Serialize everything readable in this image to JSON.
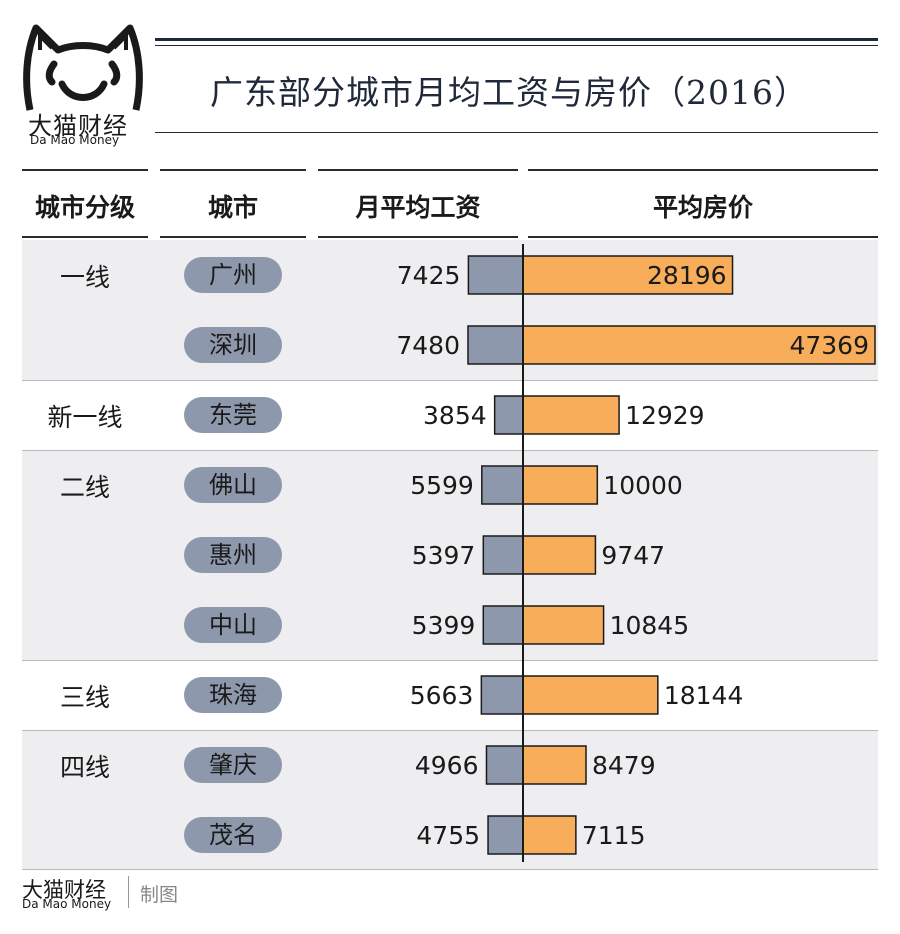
{
  "brand": {
    "name_cn": "大猫财经",
    "name_en": "Da Mao Money",
    "made_by": "制图"
  },
  "title": "广东部分城市月均工资与房价（2016）",
  "headers": {
    "tier": "城市分级",
    "city": "城市",
    "salary": "月平均工资",
    "price": "平均房价"
  },
  "colors": {
    "salary_bar": "#8e98ad",
    "price_bar": "#f7ad5a",
    "pill": "#8e98ad",
    "band": "#eeeef0"
  },
  "groups": [
    {
      "tier": "一线",
      "shaded": true
    },
    {
      "tier": "新一线",
      "shaded": false
    },
    {
      "tier": "二线",
      "shaded": true
    },
    {
      "tier": "三线",
      "shaded": false
    },
    {
      "tier": "四线",
      "shaded": true
    }
  ],
  "chart_data": {
    "type": "bar",
    "categories": [
      "广州",
      "深圳",
      "东莞",
      "佛山",
      "惠州",
      "中山",
      "珠海",
      "肇庆",
      "茂名"
    ],
    "tiers": [
      "一线",
      "一线",
      "新一线",
      "二线",
      "二线",
      "二线",
      "三线",
      "四线",
      "四线"
    ],
    "series": [
      {
        "name": "月平均工资",
        "values": [
          7425,
          7480,
          3854,
          5599,
          5397,
          5399,
          5663,
          4966,
          4755
        ]
      },
      {
        "name": "平均房价",
        "values": [
          28196,
          47369,
          12929,
          10000,
          9747,
          10845,
          18144,
          8479,
          7115
        ]
      }
    ],
    "title": "广东部分城市月均工资与房价（2016）",
    "xlabel": "",
    "ylabel": ""
  }
}
